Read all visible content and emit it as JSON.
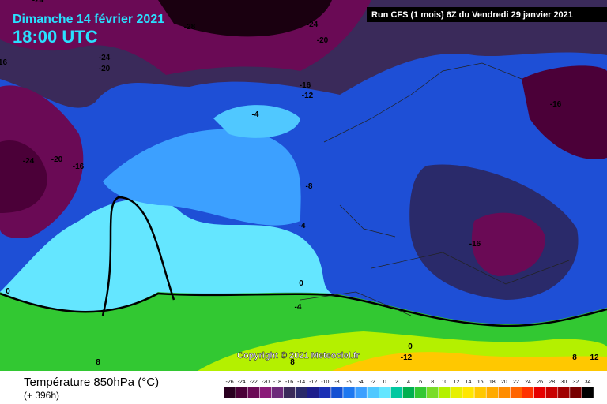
{
  "header": {
    "date": "Dimanche 14 février 2021",
    "time": "18:00 UTC",
    "run": "Run CFS (1 mois) 6Z du Vendredi 29 janvier 2021"
  },
  "copyright": "Copyright © 2021 Meteociel.fr",
  "footer": {
    "title": "Température 850hPa (°C)",
    "lead": "(+ 396h)"
  },
  "contour_labels": [
    -24,
    -28,
    -24,
    -20,
    -24,
    -20,
    -16,
    -16,
    -12,
    -16,
    -4,
    -24,
    -20,
    -16,
    -8,
    -4,
    -16,
    0,
    0,
    -4,
    8,
    8,
    0,
    -12,
    8,
    12
  ],
  "legend": {
    "values": [
      -26,
      -24,
      -22,
      -20,
      -18,
      -16,
      -14,
      -12,
      -10,
      -8,
      -6,
      -4,
      -2,
      0,
      2,
      4,
      6,
      8,
      10,
      12,
      14,
      16,
      18,
      20,
      22,
      24,
      26,
      28,
      30,
      32,
      34
    ],
    "colors": [
      "#2a0020",
      "#4b0038",
      "#6a0a55",
      "#8a1a78",
      "#6d2a7a",
      "#3a2a5a",
      "#2a2a6a",
      "#1e1e8c",
      "#1a2fb4",
      "#1450d2",
      "#1e78f0",
      "#3ca0ff",
      "#50c8ff",
      "#64e6ff",
      "#00c8a0",
      "#00b050",
      "#32c832",
      "#78dc28",
      "#b4f000",
      "#e6f000",
      "#ffe600",
      "#ffc800",
      "#ffaa00",
      "#ff8c00",
      "#ff6400",
      "#ff3200",
      "#e60000",
      "#c80000",
      "#a00000",
      "#780000",
      "#000000"
    ]
  }
}
